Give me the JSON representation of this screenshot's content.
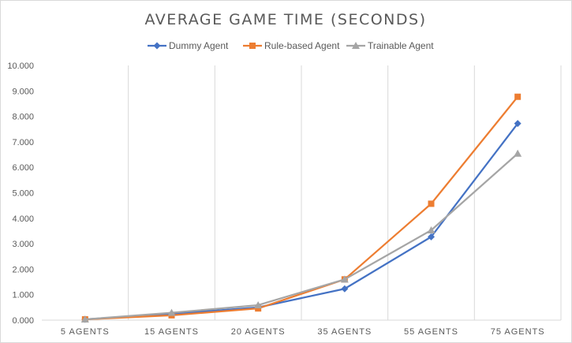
{
  "chart_data": {
    "type": "line",
    "title": "AVERAGE GAME TIME (SECONDS)",
    "xlabel": "",
    "ylabel": "",
    "categories": [
      "5 AGENTS",
      "15 AGENTS",
      "20 AGENTS",
      "35 AGENTS",
      "55 AGENTS",
      "75 AGENTS"
    ],
    "ylim": [
      0,
      10000
    ],
    "yticks": [
      0,
      1000,
      2000,
      3000,
      4000,
      5000,
      6000,
      7000,
      8000,
      9000,
      10000
    ],
    "ytick_labels": [
      "0.000",
      "1.000",
      "2.000",
      "3.000",
      "4.000",
      "5.000",
      "6.000",
      "7.000",
      "8.000",
      "9.000",
      "10.000"
    ],
    "grid": "vertical",
    "legend_position": "top",
    "series": [
      {
        "name": "Dummy Agent",
        "color": "#4472c4",
        "marker": "diamond",
        "values": [
          30,
          250,
          500,
          1230,
          3270,
          7720
        ]
      },
      {
        "name": "Rule-based Agent",
        "color": "#ed7d31",
        "marker": "square",
        "values": [
          30,
          190,
          460,
          1600,
          4570,
          8770
        ]
      },
      {
        "name": "Trainable Agent",
        "color": "#a5a5a5",
        "marker": "triangle",
        "values": [
          30,
          290,
          590,
          1600,
          3530,
          6540
        ]
      }
    ]
  }
}
